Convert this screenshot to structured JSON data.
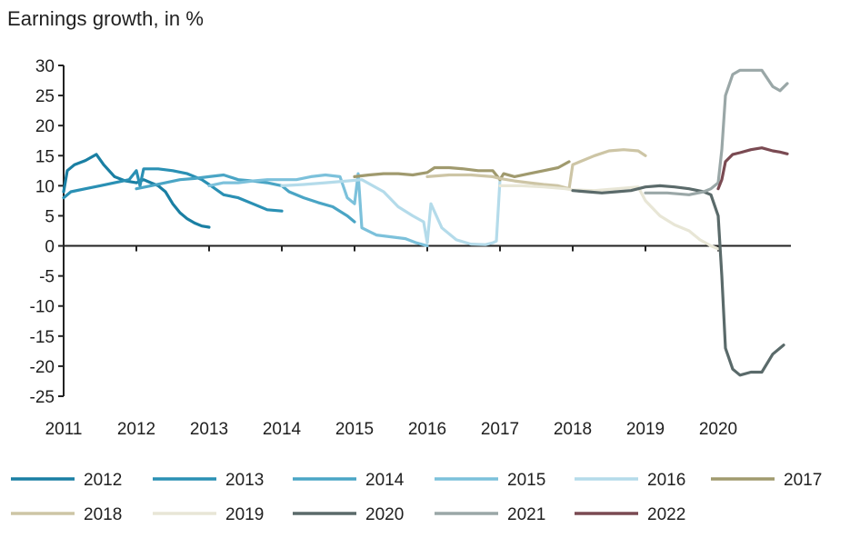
{
  "title": "Earnings growth, in %",
  "chart_data": {
    "type": "line",
    "title": "Earnings growth, in %",
    "xlabel": "",
    "ylabel": "",
    "xlim": [
      2011,
      2021
    ],
    "ylim": [
      -25,
      30
    ],
    "yticks": [
      30,
      25,
      20,
      15,
      10,
      5,
      0,
      -5,
      -10,
      -15,
      -20,
      -25
    ],
    "xticks": [
      2011,
      2012,
      2013,
      2014,
      2015,
      2016,
      2017,
      2018,
      2019,
      2020
    ],
    "grid": false,
    "legend_position": "bottom",
    "series": [
      {
        "name": "2012",
        "color": "#1a7fa3",
        "x": [
          2011.0,
          2011.05,
          2011.15,
          2011.3,
          2011.45,
          2011.55,
          2011.7,
          2011.85,
          2012.0,
          2012.1,
          2012.2,
          2012.3,
          2012.4,
          2012.5,
          2012.6,
          2012.7,
          2012.8,
          2012.9,
          2013.0
        ],
        "y": [
          9,
          12.5,
          13.5,
          14.2,
          15.2,
          13.5,
          11.5,
          10.8,
          10.5,
          11,
          10.5,
          10,
          9,
          7,
          5.5,
          4.5,
          3.8,
          3.3,
          3.1
        ]
      },
      {
        "name": "2013",
        "color": "#2a90b4",
        "x": [
          2011.0,
          2011.1,
          2011.3,
          2011.5,
          2011.7,
          2011.9,
          2012.0,
          2012.05,
          2012.1,
          2012.3,
          2012.5,
          2012.7,
          2012.9,
          2013.0,
          2013.2,
          2013.4,
          2013.6,
          2013.8,
          2014.0
        ],
        "y": [
          8,
          9,
          9.5,
          10,
          10.5,
          11,
          12.5,
          10,
          12.8,
          12.8,
          12.5,
          12,
          11,
          10.2,
          8.5,
          8,
          7,
          6,
          5.8
        ]
      },
      {
        "name": "2014",
        "color": "#4aa5c5",
        "x": [
          2012.0,
          2012.2,
          2012.4,
          2012.6,
          2012.8,
          2013.0,
          2013.2,
          2013.4,
          2013.6,
          2013.8,
          2014.0,
          2014.1,
          2014.3,
          2014.5,
          2014.7,
          2014.9,
          2015.0
        ],
        "y": [
          9.5,
          10,
          10.5,
          11,
          11.2,
          11.5,
          11.8,
          11,
          10.8,
          10.5,
          10,
          9,
          8,
          7.2,
          6.5,
          5,
          4
        ]
      },
      {
        "name": "2015",
        "color": "#7cc1db",
        "x": [
          2013.0,
          2013.2,
          2013.4,
          2013.6,
          2013.8,
          2014.0,
          2014.2,
          2014.4,
          2014.6,
          2014.8,
          2014.9,
          2015.0,
          2015.05,
          2015.1,
          2015.3,
          2015.5,
          2015.7,
          2015.85,
          2016.0
        ],
        "y": [
          10,
          10.5,
          10.5,
          10.8,
          11,
          11,
          11,
          11.5,
          11.8,
          11.5,
          8,
          7,
          12,
          3,
          1.8,
          1.5,
          1.2,
          0.5,
          0
        ]
      },
      {
        "name": "2016",
        "color": "#b4dbea",
        "x": [
          2014.0,
          2014.3,
          2014.6,
          2014.9,
          2015.1,
          2015.4,
          2015.6,
          2015.8,
          2015.95,
          2016.0,
          2016.05,
          2016.2,
          2016.4,
          2016.6,
          2016.8,
          2016.9,
          2016.95,
          2017.0
        ],
        "y": [
          10,
          10.2,
          10.5,
          10.8,
          11,
          9,
          6.5,
          5,
          4,
          0.5,
          7,
          3,
          1,
          0.3,
          0.2,
          0.5,
          0.8,
          11
        ]
      },
      {
        "name": "2017",
        "color": "#a09a6e",
        "x": [
          2015.0,
          2015.2,
          2015.4,
          2015.6,
          2015.8,
          2016.0,
          2016.1,
          2016.3,
          2016.5,
          2016.7,
          2016.9,
          2017.0,
          2017.05,
          2017.2,
          2017.4,
          2017.6,
          2017.8,
          2017.95
        ],
        "y": [
          11.5,
          11.8,
          12,
          12,
          11.8,
          12.2,
          13,
          13,
          12.8,
          12.5,
          12.5,
          11,
          12,
          11.5,
          12,
          12.5,
          13,
          14
        ]
      },
      {
        "name": "2018",
        "color": "#cdc5a5",
        "x": [
          2016.0,
          2016.3,
          2016.6,
          2016.9,
          2017.0,
          2017.2,
          2017.4,
          2017.6,
          2017.8,
          2017.95,
          2018.0,
          2018.1,
          2018.3,
          2018.5,
          2018.7,
          2018.9,
          2019.0
        ],
        "y": [
          11.5,
          11.8,
          11.8,
          11.5,
          11.2,
          10.8,
          10.5,
          10.2,
          10,
          9.5,
          13.5,
          14,
          15,
          15.8,
          16,
          15.8,
          15
        ]
      },
      {
        "name": "2019",
        "color": "#e8e6d6",
        "x": [
          2017.0,
          2017.3,
          2017.6,
          2017.9,
          2018.0,
          2018.3,
          2018.6,
          2018.9,
          2019.0,
          2019.2,
          2019.4,
          2019.6,
          2019.75,
          2019.9,
          2020.0
        ],
        "y": [
          10,
          10,
          9.8,
          9.5,
          9.3,
          9.2,
          9.5,
          9.8,
          7.5,
          5,
          3.5,
          2.5,
          1,
          0,
          -0.5
        ]
      },
      {
        "name": "2020",
        "color": "#5a6a6a",
        "x": [
          2018.0,
          2018.2,
          2018.4,
          2018.6,
          2018.8,
          2019.0,
          2019.2,
          2019.4,
          2019.6,
          2019.8,
          2019.9,
          2020.0,
          2020.05,
          2020.1,
          2020.2,
          2020.3,
          2020.45,
          2020.6,
          2020.75,
          2020.9
        ],
        "y": [
          9.2,
          9,
          8.8,
          9,
          9.2,
          9.8,
          10,
          9.8,
          9.5,
          9,
          8.5,
          5,
          -5,
          -17,
          -20.5,
          -21.5,
          -21,
          -21,
          -18,
          -16.5
        ]
      },
      {
        "name": "2021",
        "color": "#9aa7a7",
        "x": [
          2019.0,
          2019.3,
          2019.6,
          2019.8,
          2019.9,
          2020.0,
          2020.05,
          2020.1,
          2020.2,
          2020.3,
          2020.45,
          2020.6,
          2020.75,
          2020.85,
          2020.95
        ],
        "y": [
          8.8,
          8.8,
          8.5,
          9,
          9.5,
          10.5,
          16,
          25,
          28.5,
          29.2,
          29.2,
          29.2,
          26.5,
          25.8,
          27
        ]
      },
      {
        "name": "2022",
        "color": "#7a4a52",
        "x": [
          2020.0,
          2020.05,
          2020.1,
          2020.2,
          2020.3,
          2020.45,
          2020.6,
          2020.75,
          2020.85,
          2020.95
        ],
        "y": [
          9.5,
          11,
          14,
          15.2,
          15.5,
          16,
          16.3,
          15.8,
          15.6,
          15.3
        ]
      }
    ]
  }
}
